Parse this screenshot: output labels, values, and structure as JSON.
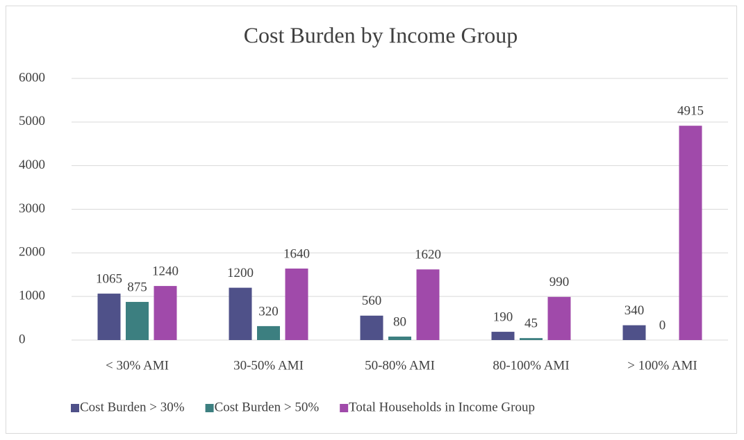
{
  "chart_data": {
    "type": "bar",
    "title": "Cost Burden by Income Group",
    "categories": [
      "< 30% AMI",
      "30-50% AMI",
      "50-80% AMI",
      "80-100% AMI",
      "> 100% AMI"
    ],
    "series": [
      {
        "name": "Cost Burden > 30%",
        "color": "#4f5189",
        "values": [
          1065,
          1200,
          560,
          190,
          340
        ]
      },
      {
        "name": "Cost Burden > 50%",
        "color": "#3c7f80",
        "values": [
          875,
          320,
          80,
          45,
          0
        ]
      },
      {
        "name": "Total Households in Income Group",
        "color": "#a04aaa",
        "values": [
          1240,
          1640,
          1620,
          990,
          4915
        ]
      }
    ],
    "ylim": [
      0,
      6000
    ],
    "yticks": [
      0,
      1000,
      2000,
      3000,
      4000,
      5000,
      6000
    ],
    "grid": true,
    "legend": "bottom"
  }
}
